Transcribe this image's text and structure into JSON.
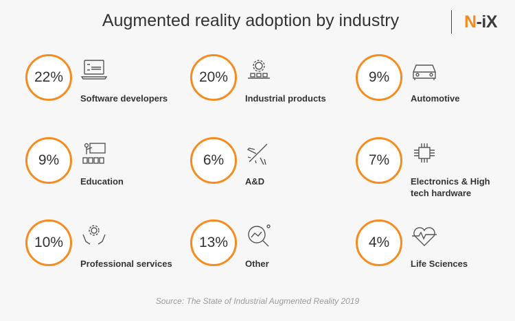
{
  "title": "Augmented reality adoption by  industry",
  "logo": {
    "part1": "N",
    "part2": "-iX",
    "accent": "#f68b1f"
  },
  "items": [
    {
      "value": "22%",
      "label": "Software developers",
      "icon": "laptop-code-icon"
    },
    {
      "value": "20%",
      "label": "Industrial products",
      "icon": "gear-conveyor-icon"
    },
    {
      "value": "9%",
      "label": "Automotive",
      "icon": "car-icon"
    },
    {
      "value": "9%",
      "label": "Education",
      "icon": "classroom-icon"
    },
    {
      "value": "6%",
      "label": "A&D",
      "icon": "airplane-icon"
    },
    {
      "value": "7%",
      "label": "Electronics & High tech hardware",
      "icon": "chip-icon"
    },
    {
      "value": "10%",
      "label": "Professional services",
      "icon": "hands-gear-icon"
    },
    {
      "value": "13%",
      "label": "Other",
      "icon": "magnifier-chart-icon"
    },
    {
      "value": "4%",
      "label": "Life Sciences",
      "icon": "heart-pulse-icon"
    }
  ],
  "source": "Source: The State of Industrial Augmented Reality 2019"
}
